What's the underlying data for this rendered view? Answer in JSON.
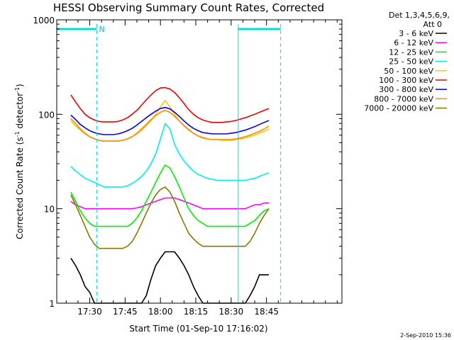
{
  "chart_data": {
    "type": "line",
    "title": "HESSI Observing Summary Count Rates, Corrected",
    "xlabel": "Start Time (01-Sep-10 17:16:02)",
    "ylabel": "Corrected Count Rate (s⁻¹ detector⁻¹)",
    "ylabel_parts": [
      "Corrected Count Rate (s",
      "-1",
      " detector",
      "-1",
      ")"
    ],
    "x_unit": "minutes after 17:16:02",
    "xlim": [
      0,
      121
    ],
    "ylim": [
      1,
      1000
    ],
    "yscale": "log",
    "xticks": [
      {
        "value": 14,
        "label": "17:30"
      },
      {
        "value": 29,
        "label": "17:45"
      },
      {
        "value": 44,
        "label": "18:00"
      },
      {
        "value": 59,
        "label": "18:15"
      },
      {
        "value": 74,
        "label": "18:30"
      },
      {
        "value": 89,
        "label": "18:45"
      }
    ],
    "yticks": [
      {
        "value": 1,
        "label": "1"
      },
      {
        "value": 10,
        "label": "10"
      },
      {
        "value": 100,
        "label": "100"
      },
      {
        "value": 1000,
        "label": "1000"
      }
    ],
    "legend_header": [
      "Det 1,3,4,5,6,9,",
      "Att 0"
    ],
    "legend_position": "right",
    "markers": {
      "night_segments": [
        [
          0,
          17
        ],
        [
          77,
          95
        ]
      ],
      "saa_marker_label": "N",
      "vertical_lines": [
        17,
        77,
        95
      ]
    },
    "series": [
      {
        "name": "3 - 6 keV",
        "color": "#000000",
        "x": [
          6,
          8,
          10,
          12,
          14,
          16,
          18,
          20,
          22,
          24,
          26,
          28,
          30,
          32,
          34,
          36,
          38,
          40,
          42,
          44,
          46,
          48,
          50,
          52,
          54,
          56,
          58,
          60,
          62,
          64,
          66,
          68,
          70,
          72,
          74,
          76,
          78,
          80,
          82,
          84,
          86,
          88,
          90
        ],
        "values": [
          3,
          2.5,
          2,
          1.5,
          1.3,
          1,
          1,
          1,
          1,
          1,
          1,
          1,
          1,
          1,
          1,
          1,
          1.2,
          1.8,
          2.5,
          3,
          3.5,
          3.5,
          3.5,
          3,
          2.5,
          2,
          1.5,
          1.2,
          1,
          1,
          1,
          1,
          1,
          1,
          1,
          1,
          1,
          1,
          1.2,
          1.5,
          2,
          2,
          2
        ]
      },
      {
        "name": "6 - 12 keV",
        "color": "#ff00ff",
        "x": [
          6,
          8,
          10,
          12,
          14,
          16,
          18,
          20,
          22,
          24,
          26,
          28,
          30,
          32,
          34,
          36,
          38,
          40,
          42,
          44,
          46,
          48,
          50,
          52,
          54,
          56,
          58,
          60,
          62,
          64,
          66,
          68,
          70,
          72,
          74,
          76,
          78,
          80,
          82,
          84,
          86,
          88,
          90
        ],
        "values": [
          12,
          11,
          10.5,
          10,
          10,
          10,
          10,
          10,
          10,
          10,
          10,
          10,
          10,
          10,
          10.2,
          10.5,
          11,
          11.5,
          12,
          12.5,
          13,
          13,
          13,
          12.5,
          12,
          11.5,
          11,
          10.5,
          10,
          10,
          10,
          10,
          10,
          10,
          10,
          10,
          10,
          10,
          10.5,
          11,
          11,
          11.5,
          11.5
        ]
      },
      {
        "name": "12 - 25 keV",
        "color": "#00ee00",
        "x": [
          6,
          8,
          10,
          12,
          14,
          16,
          18,
          20,
          22,
          24,
          26,
          28,
          30,
          32,
          34,
          36,
          38,
          40,
          42,
          44,
          46,
          48,
          50,
          52,
          54,
          56,
          58,
          60,
          62,
          64,
          66,
          68,
          70,
          72,
          74,
          76,
          78,
          80,
          82,
          84,
          86,
          88,
          90
        ],
        "values": [
          15,
          12,
          9.5,
          8,
          7,
          6.5,
          6.5,
          6.5,
          6.5,
          6.5,
          6.5,
          6.5,
          6.5,
          7,
          8,
          9.5,
          12,
          15,
          19,
          24,
          29,
          27,
          22,
          17,
          13,
          10,
          8.5,
          7.5,
          7,
          6.5,
          6.5,
          6.5,
          6.5,
          6.5,
          6.5,
          6.5,
          6.5,
          6.5,
          7,
          7.5,
          8.5,
          9.5,
          10
        ]
      },
      {
        "name": "25 - 50 keV",
        "color": "#00eeee",
        "x": [
          6,
          8,
          10,
          12,
          14,
          16,
          18,
          20,
          22,
          24,
          26,
          28,
          30,
          32,
          34,
          36,
          38,
          40,
          42,
          44,
          46,
          48,
          50,
          52,
          54,
          56,
          58,
          60,
          62,
          64,
          66,
          68,
          70,
          72,
          74,
          76,
          78,
          80,
          82,
          84,
          86,
          88,
          90
        ],
        "values": [
          28,
          25,
          23,
          21,
          20,
          19,
          18,
          17,
          17,
          17,
          17,
          17,
          17.5,
          18.5,
          20,
          22,
          25,
          30,
          38,
          55,
          80,
          70,
          48,
          38,
          32,
          28,
          25,
          23,
          22,
          21,
          20.5,
          20,
          20,
          20,
          20,
          20,
          20,
          20,
          20.5,
          21,
          22,
          23,
          24
        ]
      },
      {
        "name": "50 - 100 keV",
        "color": "#eecc00",
        "x": [
          6,
          8,
          10,
          12,
          14,
          16,
          18,
          20,
          22,
          24,
          26,
          28,
          30,
          32,
          34,
          36,
          38,
          40,
          42,
          44,
          46,
          48,
          50,
          52,
          54,
          56,
          58,
          60,
          62,
          64,
          66,
          68,
          70,
          72,
          74,
          76,
          78,
          80,
          82,
          84,
          86,
          88,
          90
        ],
        "values": [
          85,
          75,
          68,
          62,
          58,
          55,
          53,
          52,
          52,
          52,
          52,
          53,
          55,
          58,
          62,
          68,
          76,
          85,
          100,
          120,
          140,
          120,
          100,
          85,
          75,
          68,
          63,
          59,
          57,
          55,
          54,
          54,
          53,
          53,
          53,
          54,
          55,
          56,
          58,
          60,
          63,
          66,
          70
        ]
      },
      {
        "name": "100 - 300 keV",
        "color": "#ee0000",
        "x": [
          6,
          8,
          10,
          12,
          14,
          16,
          18,
          20,
          22,
          24,
          26,
          28,
          30,
          32,
          34,
          36,
          38,
          40,
          42,
          44,
          46,
          48,
          50,
          52,
          54,
          56,
          58,
          60,
          62,
          64,
          66,
          68,
          70,
          72,
          74,
          76,
          78,
          80,
          82,
          84,
          86,
          88,
          90
        ],
        "values": [
          160,
          135,
          115,
          100,
          92,
          87,
          84,
          83,
          83,
          83,
          84,
          87,
          92,
          100,
          110,
          125,
          142,
          160,
          178,
          190,
          192,
          185,
          170,
          150,
          130,
          112,
          100,
          92,
          87,
          84,
          82,
          82,
          82,
          83,
          84,
          86,
          89,
          92,
          96,
          100,
          105,
          110,
          115
        ]
      },
      {
        "name": "300 - 800 keV",
        "color": "#0000ee",
        "x": [
          6,
          8,
          10,
          12,
          14,
          16,
          18,
          20,
          22,
          24,
          26,
          28,
          30,
          32,
          34,
          36,
          38,
          40,
          42,
          44,
          46,
          48,
          50,
          52,
          54,
          56,
          58,
          60,
          62,
          64,
          66,
          68,
          70,
          72,
          74,
          76,
          78,
          80,
          82,
          84,
          86,
          88,
          90
        ],
        "values": [
          98,
          88,
          78,
          72,
          67,
          64,
          62,
          61,
          61,
          61,
          62,
          64,
          67,
          71,
          77,
          84,
          92,
          100,
          108,
          115,
          118,
          114,
          105,
          95,
          85,
          77,
          71,
          67,
          64,
          63,
          62,
          62,
          62,
          62,
          63,
          64,
          66,
          68,
          71,
          74,
          78,
          82,
          86
        ]
      },
      {
        "name": "800 - 7000 keV",
        "color": "#ff8800",
        "x": [
          6,
          8,
          10,
          12,
          14,
          16,
          18,
          20,
          22,
          24,
          26,
          28,
          30,
          32,
          34,
          36,
          38,
          40,
          42,
          44,
          46,
          48,
          50,
          52,
          54,
          56,
          58,
          60,
          62,
          64,
          66,
          68,
          70,
          72,
          74,
          76,
          78,
          80,
          82,
          84,
          86,
          88,
          90
        ],
        "values": [
          90,
          80,
          70,
          63,
          58,
          55,
          53,
          52,
          52,
          52,
          52,
          53,
          55,
          58,
          63,
          70,
          78,
          88,
          97,
          105,
          110,
          105,
          95,
          85,
          76,
          69,
          63,
          59,
          56,
          55,
          54,
          54,
          54,
          54,
          54,
          55,
          56,
          58,
          60,
          63,
          66,
          70,
          75
        ]
      },
      {
        "name": "7000 - 20000 keV",
        "color": "#887700",
        "x": [
          6,
          8,
          10,
          12,
          14,
          16,
          18,
          20,
          22,
          24,
          26,
          28,
          30,
          32,
          34,
          36,
          38,
          40,
          42,
          44,
          46,
          48,
          50,
          52,
          54,
          56,
          58,
          60,
          62,
          64,
          66,
          68,
          70,
          72,
          74,
          76,
          78,
          80,
          82,
          84,
          86,
          88,
          90
        ],
        "values": [
          14,
          11,
          8.5,
          6.5,
          5,
          4.2,
          3.8,
          3.8,
          3.8,
          3.8,
          3.8,
          3.8,
          4,
          4.5,
          5.5,
          7,
          9,
          11.5,
          14,
          16,
          17,
          15,
          12,
          9,
          7,
          5.5,
          4.8,
          4.3,
          4,
          4,
          4,
          4,
          4,
          4,
          4,
          4,
          4,
          4,
          4.5,
          5.5,
          7,
          8.5,
          10
        ]
      }
    ],
    "timestamp": "2-Sep-2010 15:36"
  }
}
